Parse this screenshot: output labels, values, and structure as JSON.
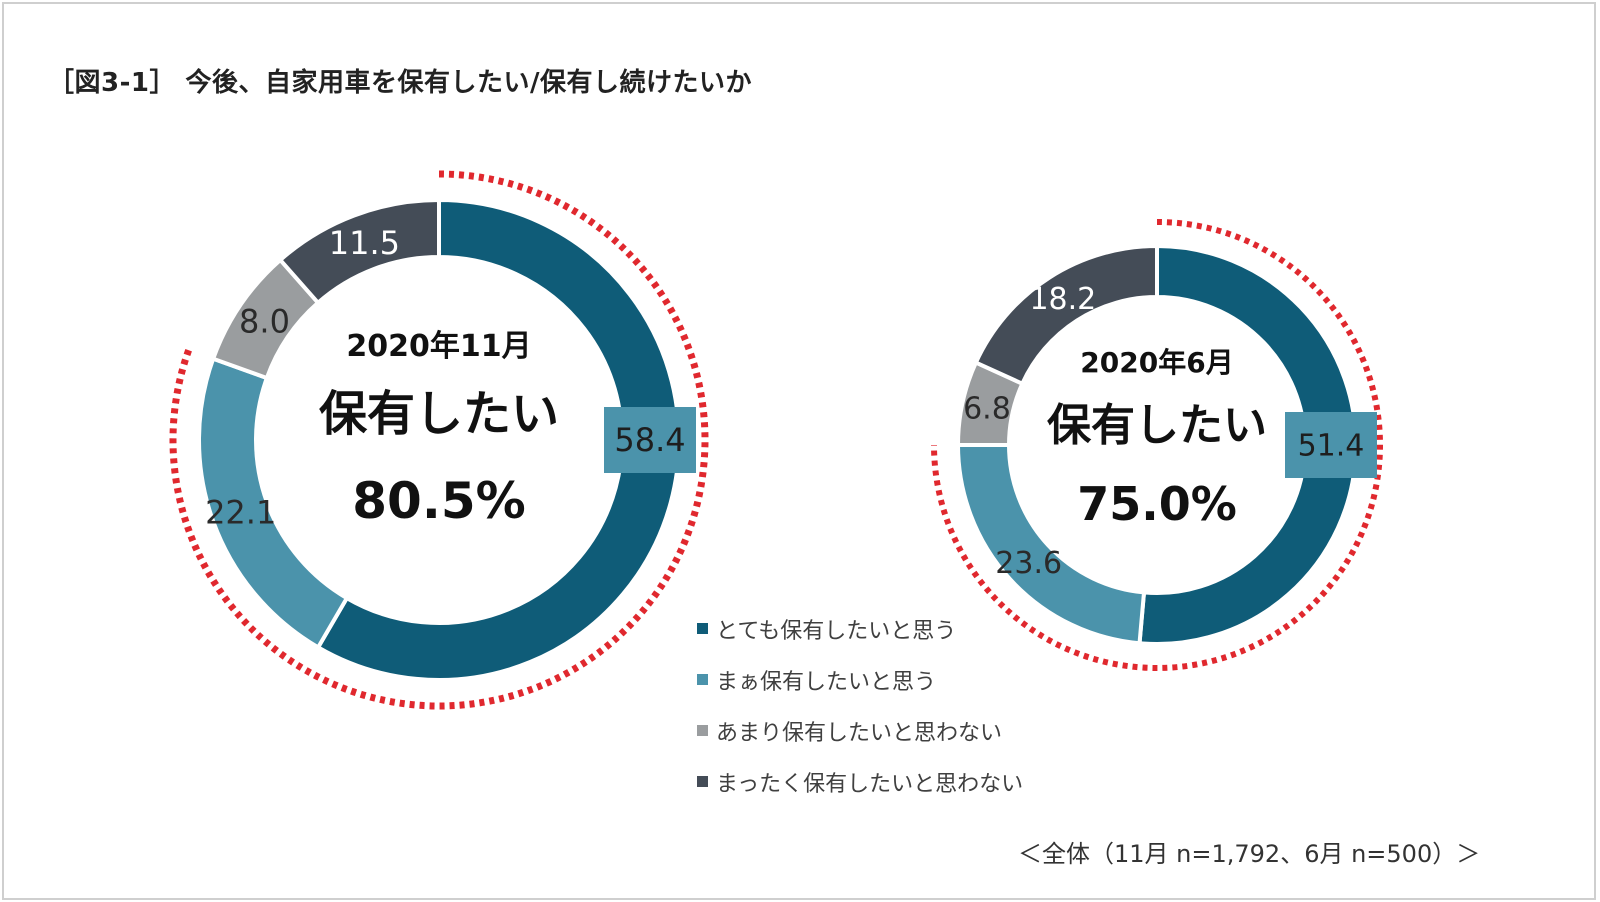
{
  "title": "［図3-1］ 今後、自家用車を保有したい/保有し続けたいか",
  "footnote": "＜全体（11月 n=1,792、6月 n=500）＞",
  "colors": {
    "very_much": "#0f5c78",
    "somewhat": "#4b93ab",
    "not_much": "#9a9d9f",
    "not_at_all": "#444c57",
    "highlight": "#e0282e"
  },
  "chart_data": {
    "type": "pie",
    "variant": "donut",
    "series_labels": [
      "とても保有したいと思う",
      "まぁ保有したいと思う",
      "あまり保有したいと思わない",
      "まったく保有したいと思わない"
    ],
    "charts": [
      {
        "period": "2020年11月",
        "heading": "保有したい",
        "total": "80.5%",
        "values": [
          58.4,
          22.1,
          8.0,
          11.5
        ],
        "labels": [
          "58.4",
          "22.1",
          "8.0",
          "11.5"
        ]
      },
      {
        "period": "2020年6月",
        "heading": "保有したい",
        "total": "75.0%",
        "values": [
          51.4,
          23.6,
          6.8,
          18.2
        ],
        "labels": [
          "51.4",
          "23.6",
          "6.8",
          "18.2"
        ]
      }
    ],
    "legend_position": "bottom-center"
  }
}
